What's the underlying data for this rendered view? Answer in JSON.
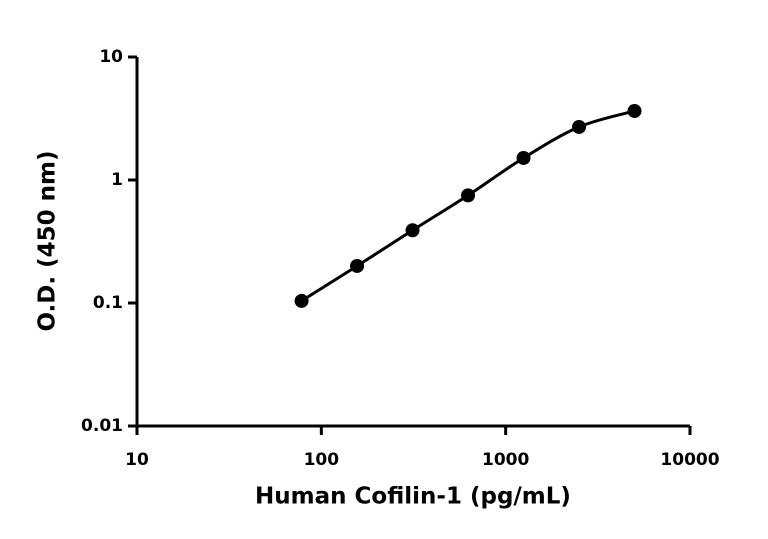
{
  "chart_data": {
    "type": "line",
    "x_label": "Human Cofilin-1 (pg/mL)",
    "y_label": "O.D. (450 nm)",
    "x": [
      78.125,
      156.25,
      312.5,
      625,
      1250,
      2500,
      5000
    ],
    "series": [
      {
        "color": "#000000",
        "values": [
          0.104,
          0.2,
          0.39,
          0.75,
          1.51,
          2.7,
          3.64
        ]
      }
    ],
    "x_log": true,
    "y_log": true,
    "markers": true,
    "smooth": true,
    "xlim": [
      10,
      10000
    ],
    "xticks": [
      10,
      100,
      1000,
      10000
    ],
    "ylim": [
      0.01,
      10
    ],
    "yticks": [
      0.01,
      0.1,
      1,
      10
    ]
  }
}
